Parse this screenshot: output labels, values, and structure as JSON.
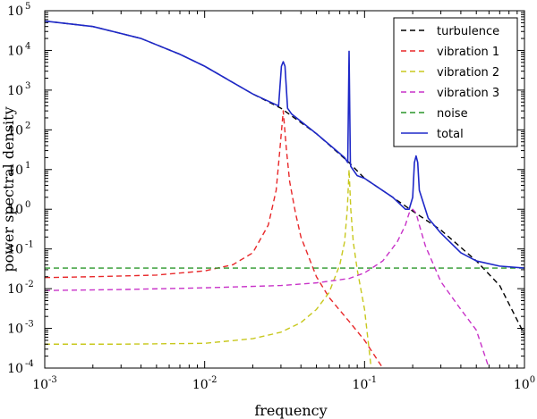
{
  "chart_data": {
    "type": "line",
    "title": "",
    "xlabel": "frequency",
    "ylabel": "power spectral density",
    "xscale": "log",
    "yscale": "log",
    "xlim": [
      0.001,
      1
    ],
    "ylim": [
      0.0001,
      100000
    ],
    "grid": false,
    "legend_position": "top-right",
    "x_ticks": [
      {
        "value": 0.001,
        "base": "10",
        "exp": "-3"
      },
      {
        "value": 0.01,
        "base": "10",
        "exp": "-2"
      },
      {
        "value": 0.1,
        "base": "10",
        "exp": "-1"
      },
      {
        "value": 1,
        "base": "10",
        "exp": "0"
      }
    ],
    "y_ticks": [
      {
        "value": 0.0001,
        "base": "10",
        "exp": "-4"
      },
      {
        "value": 0.001,
        "base": "10",
        "exp": "-3"
      },
      {
        "value": 0.01,
        "base": "10",
        "exp": "-2"
      },
      {
        "value": 0.1,
        "base": "10",
        "exp": "-1"
      },
      {
        "value": 1,
        "base": "10",
        "exp": "0"
      },
      {
        "value": 10,
        "base": "10",
        "exp": "1"
      },
      {
        "value": 100,
        "base": "10",
        "exp": "2"
      },
      {
        "value": 1000,
        "base": "10",
        "exp": "3"
      },
      {
        "value": 10000,
        "base": "10",
        "exp": "4"
      },
      {
        "value": 100000,
        "base": "10",
        "exp": "5"
      }
    ],
    "series": [
      {
        "name": "turbulence",
        "color": "#000000",
        "style": "dashed",
        "x": [
          0.001,
          0.002,
          0.004,
          0.007,
          0.01,
          0.02,
          0.03,
          0.05,
          0.08,
          0.1,
          0.15,
          0.2,
          0.3,
          0.5,
          0.7,
          1.0
        ],
        "y": [
          55000,
          40000,
          20000,
          8000,
          4000,
          800,
          350,
          80,
          15,
          6,
          2.0,
          0.9,
          0.3,
          0.05,
          0.012,
          0.0007
        ]
      },
      {
        "name": "vibration 1",
        "color": "#e8282a",
        "style": "dashed",
        "x": [
          0.001,
          0.002,
          0.005,
          0.01,
          0.015,
          0.02,
          0.025,
          0.028,
          0.0295,
          0.031,
          0.0325,
          0.034,
          0.037,
          0.04,
          0.05,
          0.06,
          0.08,
          0.1,
          0.13
        ],
        "y": [
          0.019,
          0.02,
          0.022,
          0.028,
          0.04,
          0.08,
          0.4,
          3,
          30,
          300,
          30,
          5,
          0.8,
          0.2,
          0.02,
          0.006,
          0.0015,
          0.0005,
          0.0001
        ]
      },
      {
        "name": "vibration 2",
        "color": "#c8c81e",
        "style": "dashed",
        "x": [
          0.001,
          0.003,
          0.01,
          0.02,
          0.03,
          0.04,
          0.05,
          0.06,
          0.07,
          0.075,
          0.078,
          0.08,
          0.082,
          0.085,
          0.09,
          0.1,
          0.11
        ],
        "y": [
          0.0004,
          0.0004,
          0.00042,
          0.00055,
          0.0008,
          0.0014,
          0.003,
          0.008,
          0.04,
          0.15,
          1,
          10,
          1,
          0.15,
          0.03,
          0.003,
          0.0001
        ]
      },
      {
        "name": "vibration 3",
        "color": "#c832c8",
        "style": "dashed",
        "x": [
          0.001,
          0.003,
          0.01,
          0.03,
          0.05,
          0.08,
          0.1,
          0.13,
          0.16,
          0.18,
          0.19,
          0.2,
          0.21,
          0.22,
          0.24,
          0.27,
          0.3,
          0.4,
          0.5,
          0.6
        ],
        "y": [
          0.009,
          0.0095,
          0.0105,
          0.012,
          0.014,
          0.018,
          0.025,
          0.05,
          0.15,
          0.4,
          0.8,
          1.0,
          0.8,
          0.4,
          0.12,
          0.04,
          0.015,
          0.003,
          0.0009,
          0.0001
        ]
      },
      {
        "name": "noise",
        "color": "#2a962a",
        "style": "dashed",
        "x": [
          0.001,
          1.0
        ],
        "y": [
          0.033,
          0.033
        ]
      },
      {
        "name": "total",
        "color": "#1e28c8",
        "style": "solid",
        "x": [
          0.001,
          0.002,
          0.004,
          0.007,
          0.01,
          0.02,
          0.029,
          0.0302,
          0.031,
          0.0318,
          0.033,
          0.035,
          0.05,
          0.075,
          0.0785,
          0.08,
          0.0815,
          0.082,
          0.09,
          0.1,
          0.15,
          0.18,
          0.19,
          0.2,
          0.205,
          0.21,
          0.215,
          0.22,
          0.25,
          0.3,
          0.4,
          0.5,
          0.7,
          1.0
        ],
        "y": [
          55000,
          40000,
          20000,
          8000,
          4000,
          800,
          400,
          4000,
          5200,
          4000,
          350,
          250,
          80,
          20,
          15,
          9500,
          15,
          12,
          7,
          6,
          2.0,
          1.0,
          1.0,
          2,
          15,
          22,
          15,
          3,
          0.6,
          0.25,
          0.08,
          0.05,
          0.037,
          0.033
        ]
      }
    ]
  }
}
